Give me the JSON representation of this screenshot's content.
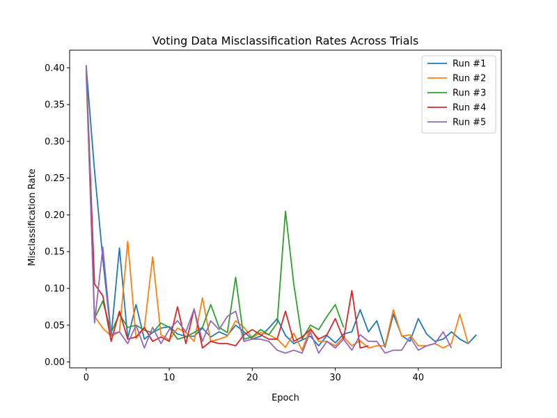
{
  "chart_data": {
    "type": "line",
    "title": "Voting Data Misclassification Rates Across Trials",
    "xlabel": "Epoch",
    "ylabel": "Misclassification Rate",
    "xlim": [
      -2,
      50
    ],
    "ylim": [
      -0.008,
      0.424
    ],
    "xticks": [
      0,
      10,
      20,
      30,
      40
    ],
    "xtick_labels": [
      "0",
      "10",
      "20",
      "30",
      "40"
    ],
    "yticks": [
      0.0,
      0.05,
      0.1,
      0.15,
      0.2,
      0.25,
      0.3,
      0.35,
      0.4
    ],
    "ytick_labels": [
      "0.00",
      "0.05",
      "0.10",
      "0.15",
      "0.20",
      "0.25",
      "0.30",
      "0.35",
      "0.40"
    ],
    "grid": false,
    "legend_position": "top-right",
    "series": [
      {
        "name": "Run #1",
        "color": "#1f77b4",
        "values": [
          0.401,
          0.26,
          0.14,
          0.035,
          0.155,
          0.032,
          0.078,
          0.031,
          0.04,
          0.046,
          0.048,
          0.038,
          0.035,
          0.035,
          0.046,
          0.034,
          0.041,
          0.036,
          0.05,
          0.041,
          0.031,
          0.035,
          0.046,
          0.059,
          0.036,
          0.025,
          0.03,
          0.035,
          0.022,
          0.036,
          0.026,
          0.038,
          0.041,
          0.071,
          0.041,
          0.056,
          0.02,
          0.065,
          0.036,
          0.028,
          0.059,
          0.038,
          0.028,
          0.031,
          0.041,
          0.031,
          0.025,
          0.037
        ]
      },
      {
        "name": "Run #2",
        "color": "#ff7f0e",
        "values": [
          0.39,
          0.062,
          0.046,
          0.035,
          0.041,
          0.164,
          0.032,
          0.046,
          0.143,
          0.037,
          0.03,
          0.046,
          0.04,
          0.028,
          0.087,
          0.028,
          0.031,
          0.035,
          0.056,
          0.047,
          0.033,
          0.04,
          0.037,
          0.031,
          0.02,
          0.039,
          0.016,
          0.046,
          0.028,
          0.028,
          0.022,
          0.034,
          0.022,
          0.029,
          0.019,
          0.022,
          0.022,
          0.071,
          0.035,
          0.037,
          0.022,
          0.022,
          0.025,
          0.019,
          0.025,
          0.065,
          0.025
        ]
      },
      {
        "name": "Run #3",
        "color": "#2ca02c",
        "values": [
          0.395,
          0.059,
          0.083,
          0.04,
          0.065,
          0.047,
          0.05,
          0.043,
          0.04,
          0.053,
          0.047,
          0.031,
          0.034,
          0.04,
          0.047,
          0.078,
          0.047,
          0.04,
          0.115,
          0.031,
          0.034,
          0.044,
          0.037,
          0.053,
          0.205,
          0.106,
          0.031,
          0.05,
          0.044,
          0.062,
          0.078,
          0.047
        ]
      },
      {
        "name": "Run #4",
        "color": "#d62728",
        "values": [
          0.4,
          0.106,
          0.09,
          0.028,
          0.069,
          0.031,
          0.034,
          0.047,
          0.028,
          0.034,
          0.028,
          0.075,
          0.025,
          0.072,
          0.019,
          0.028,
          0.025,
          0.025,
          0.022,
          0.037,
          0.044,
          0.037,
          0.031,
          0.031,
          0.069,
          0.028,
          0.034,
          0.044,
          0.031,
          0.037,
          0.059,
          0.031,
          0.097,
          0.019,
          0.022
        ]
      },
      {
        "name": "Run #5",
        "color": "#9467bd",
        "values": [
          0.404,
          0.053,
          0.156,
          0.038,
          0.041,
          0.025,
          0.05,
          0.019,
          0.047,
          0.025,
          0.044,
          0.056,
          0.041,
          0.072,
          0.028,
          0.056,
          0.044,
          0.062,
          0.069,
          0.028,
          0.031,
          0.031,
          0.028,
          0.016,
          0.012,
          0.016,
          0.012,
          0.041,
          0.012,
          0.028,
          0.019,
          0.031,
          0.016,
          0.037,
          0.028,
          0.028,
          0.012,
          0.016,
          0.016,
          0.034,
          0.016,
          0.022,
          0.025,
          0.041,
          0.019
        ]
      }
    ]
  }
}
